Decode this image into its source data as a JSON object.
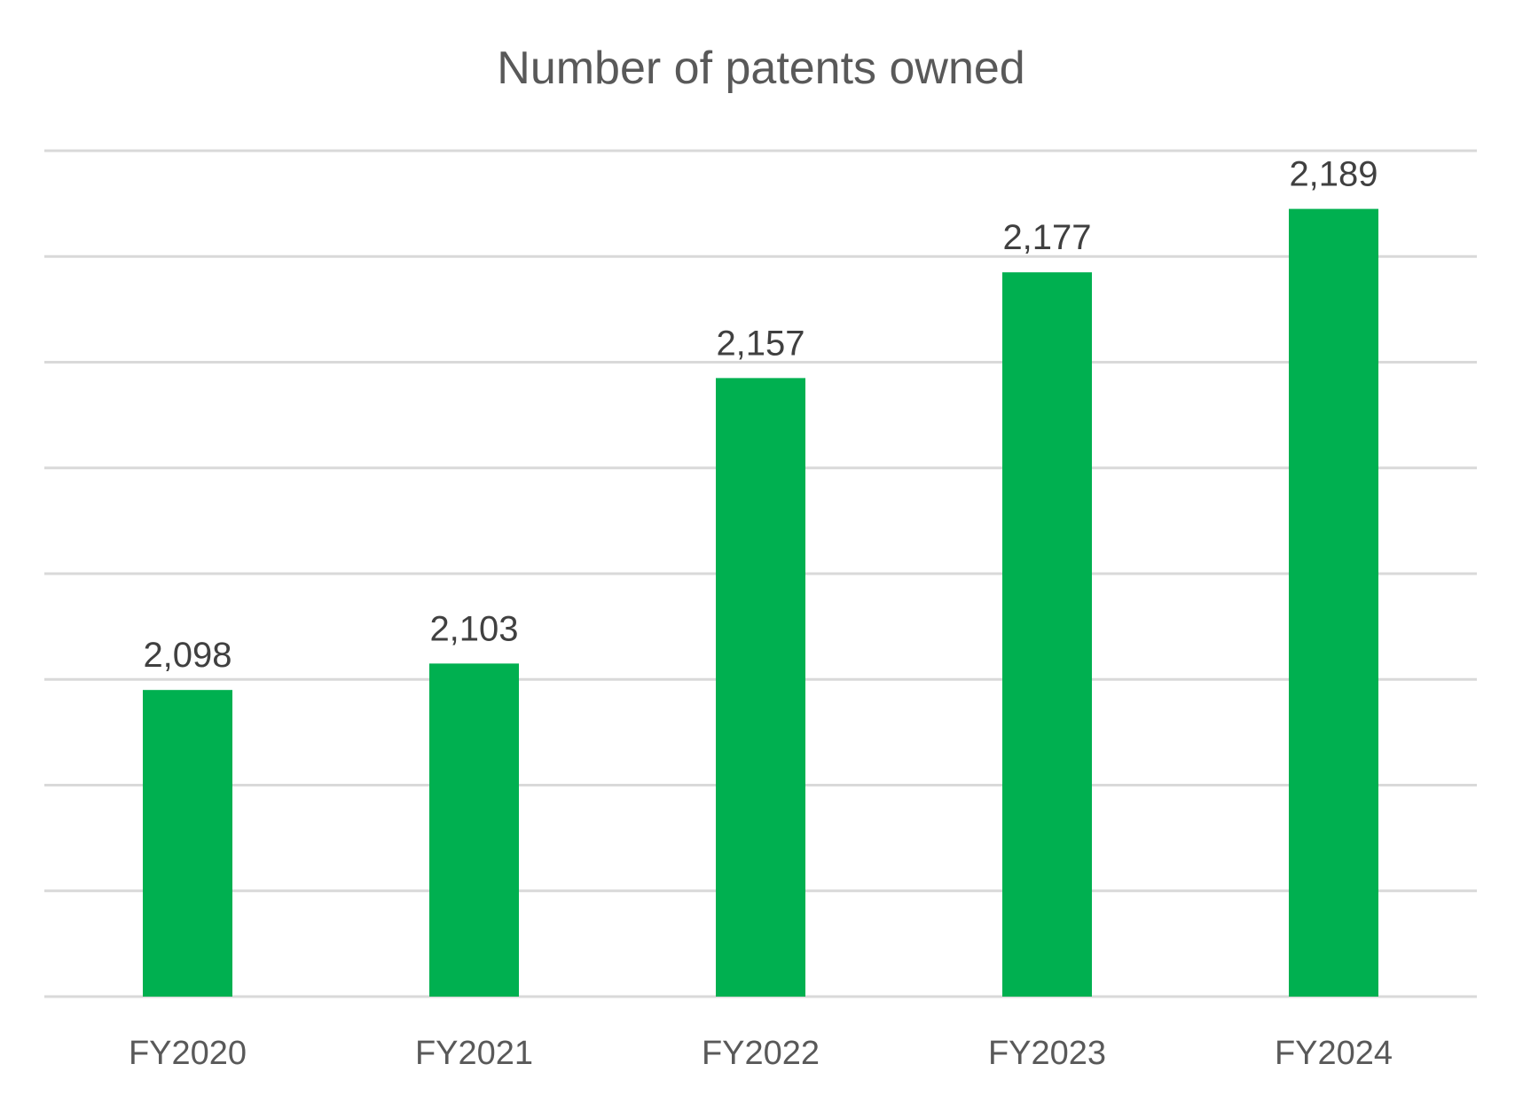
{
  "chart_data": {
    "type": "bar",
    "title": "Number of patents owned",
    "categories": [
      "FY2020",
      "FY2021",
      "FY2022",
      "FY2023",
      "FY2024"
    ],
    "values": [
      2098,
      2103,
      2157,
      2177,
      2189
    ],
    "data_labels": [
      "2,098",
      "2,103",
      "2,157",
      "2,177",
      "2,189"
    ],
    "xlabel": "",
    "ylabel": "",
    "ylim": [
      2040,
      2200
    ],
    "y_grid_step": 20,
    "y_tick_labels_shown": false,
    "grid": true,
    "legend": "none",
    "colors": {
      "bar": "#00B050",
      "grid": "#D9D9D9",
      "text": "#595959",
      "label": "#404040"
    }
  }
}
